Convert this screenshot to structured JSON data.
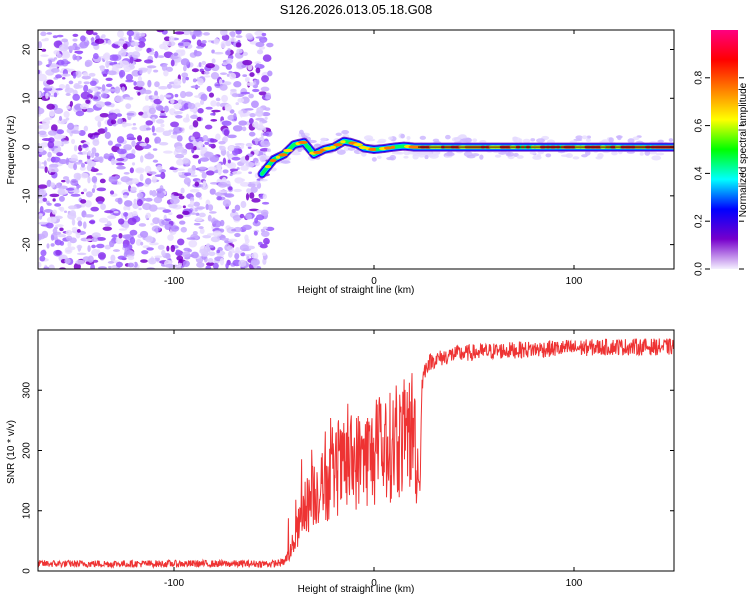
{
  "title": "S126.2026.013.05.18.G08",
  "chart_data": [
    {
      "type": "heatmap",
      "title": "S126.2026.013.05.18.G08",
      "xlabel": "Height of straight line (km)",
      "ylabel": "Frequency (Hz)",
      "xlim": [
        -168,
        150
      ],
      "ylim": [
        -25,
        24
      ],
      "xticks": [
        "-100",
        "0",
        "100"
      ],
      "xtick_values": [
        -100,
        0,
        100
      ],
      "yticks": [
        "20",
        "10",
        "0",
        "-10",
        "-20"
      ],
      "ytick_values": [
        20,
        10,
        0,
        -10,
        -20
      ],
      "noise_region_x": [
        -168,
        -55
      ],
      "ridge": {
        "x": [
          -56,
          -50,
          -45,
          -40,
          -35,
          -30,
          -25,
          -20,
          -15,
          -12,
          -8,
          -5,
          0,
          5,
          10,
          15,
          20,
          25,
          40,
          60,
          80,
          100,
          120,
          140,
          150
        ],
        "y": [
          -5.5,
          -2.5,
          -1.5,
          0.5,
          1.0,
          -1.5,
          -0.5,
          0.0,
          1.2,
          1.0,
          0.5,
          -0.2,
          -0.5,
          -0.3,
          0.0,
          0.2,
          0.0,
          0.0,
          0.0,
          0.0,
          0.0,
          0.0,
          0.0,
          0.0,
          0.0
        ]
      },
      "colorbar": {
        "label": "Normalized spectral amplitude",
        "min": 0.0,
        "max": 1.0,
        "ticks": [
          "0.0",
          "0.2",
          "0.4",
          "0.6",
          "0.8"
        ],
        "tick_values": [
          0.0,
          0.2,
          0.4,
          0.6,
          0.8
        ],
        "colors": [
          "#f4f0ff",
          "#7700cc",
          "#0000ff",
          "#00ffff",
          "#00ff00",
          "#ffff00",
          "#ff8000",
          "#ff0000",
          "#ff0080"
        ]
      }
    },
    {
      "type": "line",
      "xlabel": "Height of straight line (km)",
      "ylabel": "SNR (10 * v/v)",
      "xlim": [
        -168,
        150
      ],
      "ylim": [
        0,
        400
      ],
      "xticks": [
        "-100",
        "0",
        "100"
      ],
      "xtick_values": [
        -100,
        0,
        100
      ],
      "yticks": [
        "0",
        "100",
        "200",
        "300"
      ],
      "ytick_values": [
        0,
        100,
        200,
        300
      ],
      "color": "#ee3333",
      "series": [
        {
          "name": "SNR",
          "x": [
            -168,
            -100,
            -50,
            -45,
            -42,
            -38,
            -35,
            -30,
            -25,
            -20,
            -15,
            -10,
            -5,
            0,
            5,
            10,
            15,
            20,
            22,
            23,
            24,
            25,
            27,
            30,
            40,
            60,
            80,
            100,
            120,
            140,
            150
          ],
          "y": [
            12,
            12,
            12,
            15,
            30,
            70,
            100,
            130,
            140,
            160,
            170,
            180,
            190,
            190,
            200,
            210,
            220,
            240,
            160,
            140,
            310,
            330,
            345,
            350,
            360,
            365,
            368,
            370,
            372,
            372,
            372
          ]
        }
      ]
    }
  ]
}
